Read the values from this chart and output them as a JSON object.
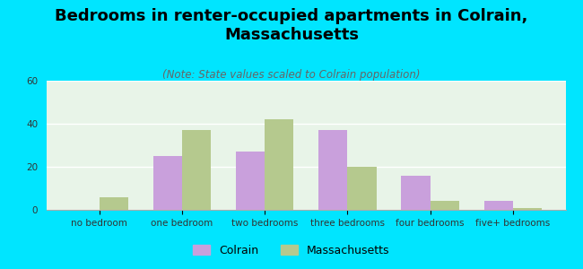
{
  "title": "Bedrooms in renter-occupied apartments in Colrain,\nMassachusetts",
  "subtitle": "(Note: State values scaled to Colrain population)",
  "categories": [
    "no bedroom",
    "one bedroom",
    "two bedrooms",
    "three bedrooms",
    "four bedrooms",
    "five+ bedrooms"
  ],
  "colrain_values": [
    0,
    25,
    27,
    37,
    16,
    4
  ],
  "massachusetts_values": [
    6,
    37,
    42,
    20,
    4,
    1
  ],
  "colrain_color": "#c9a0dc",
  "massachusetts_color": "#b5c98e",
  "fig_bg_color": "#00e5ff",
  "plot_bg_color": "#e8f4e8",
  "ylim": [
    0,
    60
  ],
  "yticks": [
    0,
    20,
    40,
    60
  ],
  "bar_width": 0.35,
  "title_fontsize": 13,
  "subtitle_fontsize": 8.5,
  "tick_fontsize": 7.5,
  "legend_fontsize": 9
}
